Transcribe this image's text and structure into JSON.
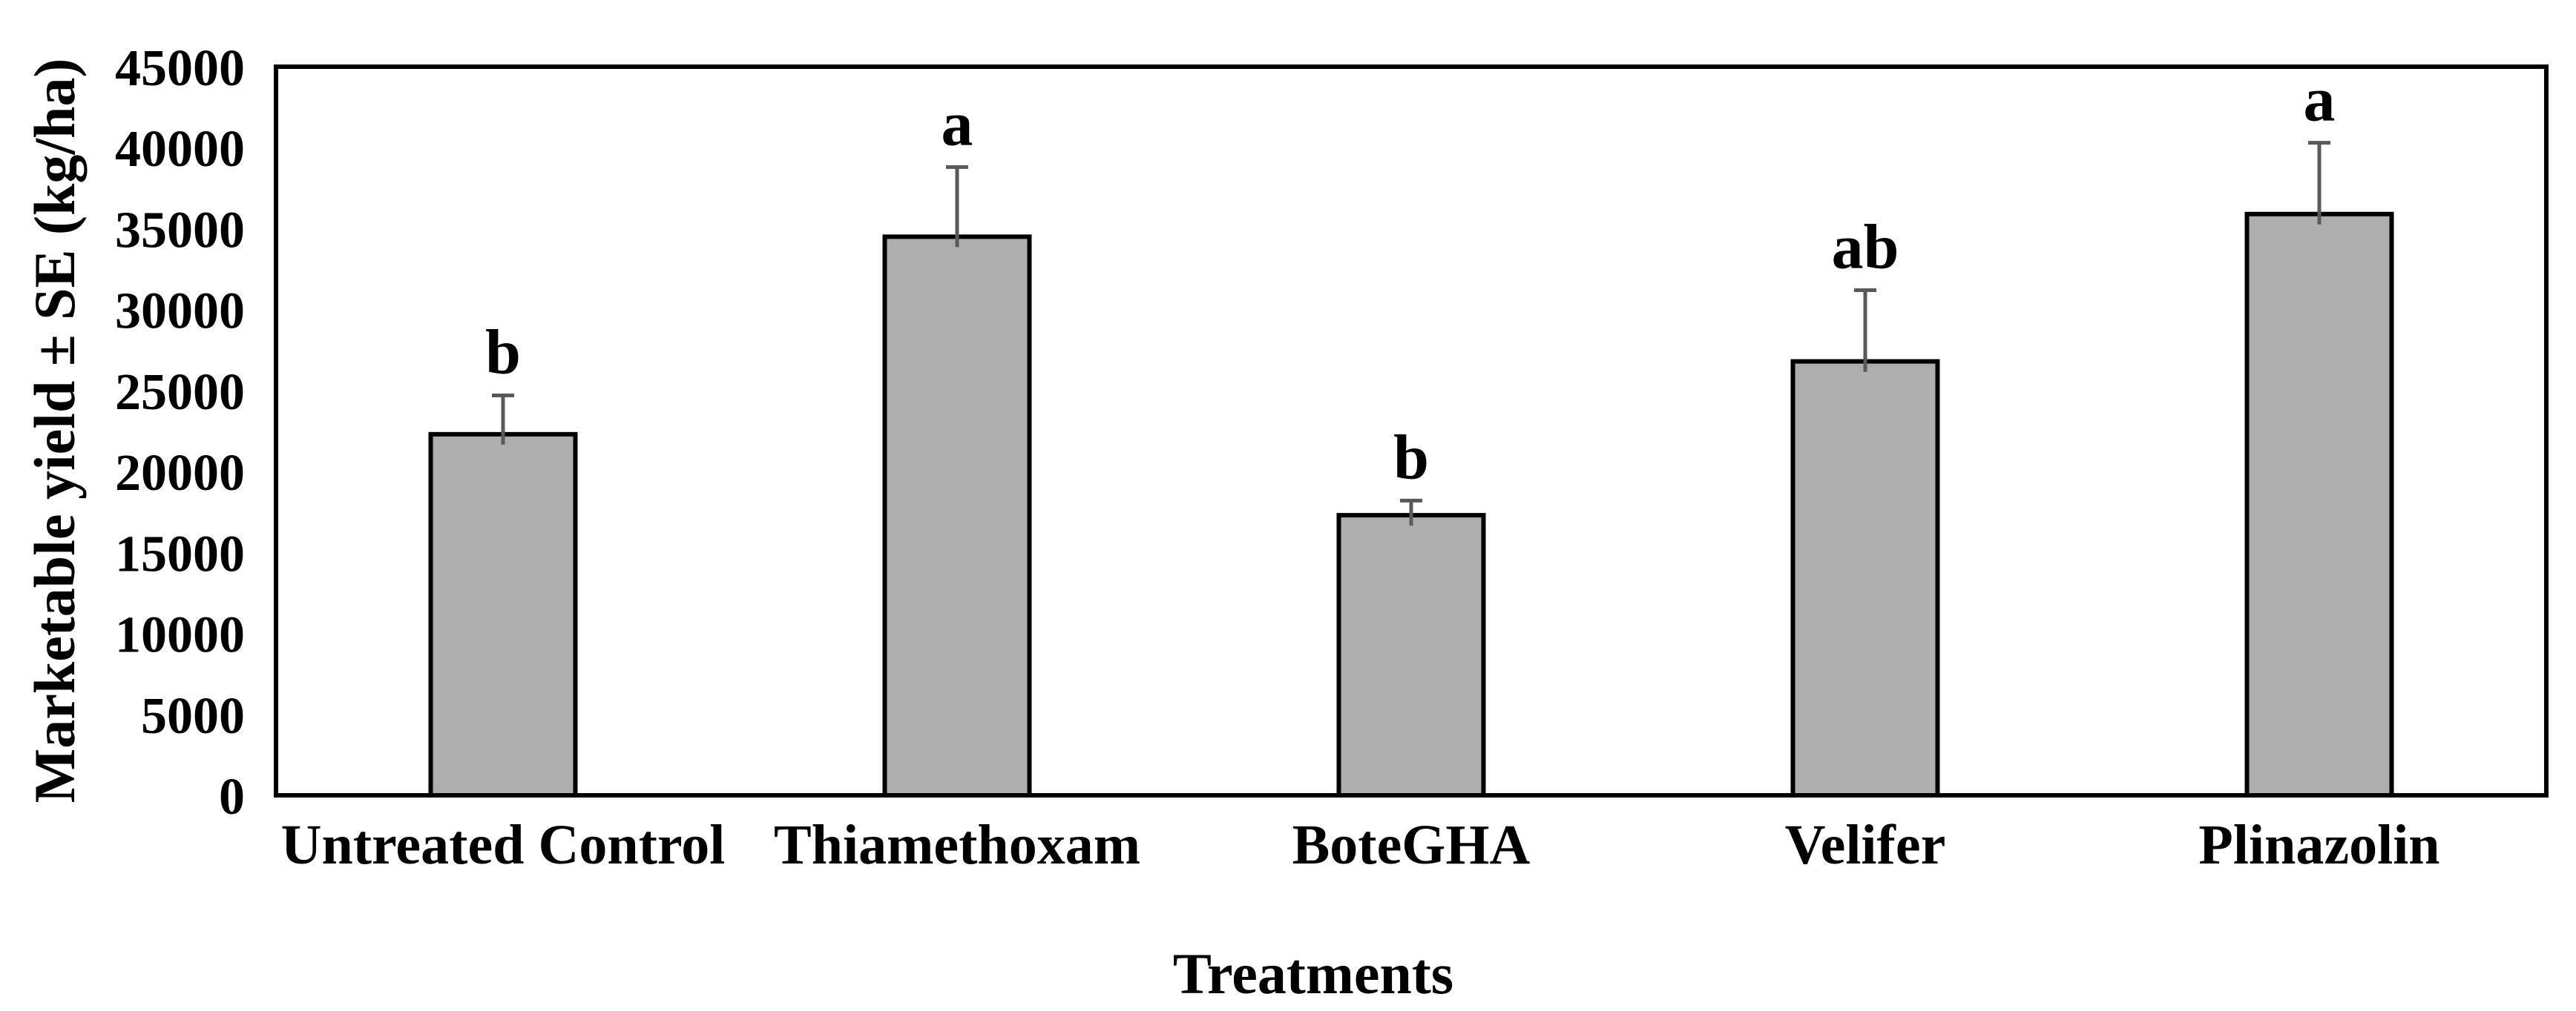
{
  "chart_data": {
    "type": "bar",
    "xlabel": "Treatments",
    "ylabel": "Marketable yield ± SE (kg/ha)",
    "categories": [
      "Untreated Control",
      "Thiamethoxam",
      "BoteGHA",
      "Velifer",
      "Plinazolin"
    ],
    "values": [
      22300,
      34500,
      17300,
      26800,
      35900
    ],
    "se": [
      2400,
      4300,
      900,
      4400,
      4400
    ],
    "sig_letters": [
      "b",
      "a",
      "b",
      "ab",
      "a"
    ],
    "ylim": [
      0,
      45000
    ],
    "ytick_step": 5000,
    "ytick_labels": [
      "0",
      "5000",
      "10000",
      "15000",
      "20000",
      "25000",
      "30000",
      "35000",
      "40000",
      "45000"
    ],
    "grid": false,
    "legend": false,
    "colors": {
      "bar_fill": "#aeaeae",
      "bar_border": "#000000",
      "error_bar": "#595959",
      "axis_border": "#000000",
      "text": "#000000",
      "background": "#ffffff"
    }
  }
}
